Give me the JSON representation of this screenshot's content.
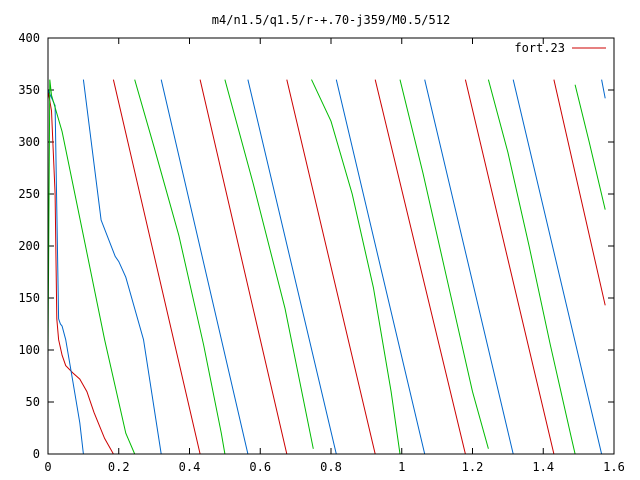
{
  "chart_data": {
    "type": "line",
    "title": "m4/n1.5/q1.5/r-+.70-j359/M0.5/512",
    "xlabel": "",
    "ylabel": "",
    "xlim": [
      0,
      1.6
    ],
    "ylim": [
      0,
      400
    ],
    "x_ticks": [
      "0",
      "0.2",
      "0.4",
      "0.6",
      "0.8",
      "1",
      "1.2",
      "1.4",
      "1.6"
    ],
    "y_ticks": [
      "0",
      "50",
      "100",
      "150",
      "200",
      "250",
      "300",
      "350",
      "400"
    ],
    "grid": false,
    "legend_position": "top-right",
    "series": [
      {
        "name": "fort.23",
        "color": "#cc0000",
        "points": [
          [
            0.0,
            350
          ],
          [
            0.01,
            330
          ],
          [
            0.02,
            250
          ],
          [
            0.025,
            130
          ],
          [
            0.03,
            110
          ],
          [
            0.04,
            95
          ],
          [
            0.05,
            85
          ],
          [
            0.07,
            78
          ],
          [
            0.09,
            72
          ],
          [
            0.11,
            60
          ],
          [
            0.13,
            40
          ],
          [
            0.16,
            15
          ],
          [
            0.185,
            0
          ],
          null,
          [
            0.185,
            360
          ],
          [
            0.43,
            0
          ],
          null,
          [
            0.43,
            360
          ],
          [
            0.675,
            0
          ],
          null,
          [
            0.675,
            360
          ],
          [
            0.925,
            0
          ],
          null,
          [
            0.925,
            360
          ],
          [
            1.18,
            0
          ],
          null,
          [
            1.18,
            360
          ],
          [
            1.43,
            0
          ],
          null,
          [
            1.43,
            360
          ],
          [
            1.575,
            143
          ]
        ]
      },
      {
        "name": "",
        "color": "#0066cc",
        "points": [
          [
            0.0,
            350
          ],
          [
            0.02,
            335
          ],
          [
            0.03,
            130
          ],
          [
            0.035,
            125
          ],
          [
            0.04,
            123
          ],
          [
            0.05,
            110
          ],
          [
            0.07,
            70
          ],
          [
            0.09,
            30
          ],
          [
            0.1,
            0
          ],
          null,
          [
            0.1,
            360
          ],
          [
            0.15,
            225
          ],
          [
            0.19,
            190
          ],
          [
            0.2,
            185
          ],
          [
            0.22,
            170
          ],
          [
            0.27,
            110
          ],
          [
            0.32,
            0
          ],
          null,
          [
            0.32,
            360
          ],
          [
            0.565,
            0
          ],
          null,
          [
            0.565,
            360
          ],
          [
            0.815,
            0
          ],
          null,
          [
            0.815,
            360
          ],
          [
            1.065,
            0
          ],
          null,
          [
            1.065,
            360
          ],
          [
            1.315,
            0
          ],
          null,
          [
            1.315,
            360
          ],
          [
            1.565,
            0
          ],
          null,
          [
            1.565,
            360
          ],
          [
            1.575,
            342
          ]
        ]
      },
      {
        "name": "",
        "color": "#00bb00",
        "points": [
          [
            0.0,
            95
          ],
          [
            0.005,
            360
          ],
          [
            0.01,
            345
          ],
          [
            0.04,
            310
          ],
          [
            0.1,
            210
          ],
          [
            0.16,
            110
          ],
          [
            0.22,
            20
          ],
          [
            0.245,
            0
          ],
          null,
          [
            0.245,
            360
          ],
          [
            0.3,
            295
          ],
          [
            0.37,
            210
          ],
          [
            0.44,
            105
          ],
          [
            0.49,
            20
          ],
          [
            0.5,
            0
          ],
          null,
          [
            0.5,
            360
          ],
          [
            0.58,
            260
          ],
          [
            0.67,
            140
          ],
          [
            0.75,
            5
          ],
          null,
          [
            0.745,
            360
          ],
          [
            0.8,
            320
          ],
          [
            0.86,
            250
          ],
          [
            0.92,
            160
          ],
          [
            0.97,
            60
          ],
          [
            0.995,
            0
          ],
          null,
          [
            0.995,
            360
          ],
          [
            1.06,
            270
          ],
          [
            1.12,
            180
          ],
          [
            1.2,
            60
          ],
          [
            1.245,
            5
          ],
          null,
          [
            1.245,
            360
          ],
          [
            1.3,
            290
          ],
          [
            1.36,
            200
          ],
          [
            1.42,
            105
          ],
          [
            1.48,
            15
          ],
          [
            1.49,
            0
          ],
          null,
          [
            1.49,
            355
          ],
          [
            1.53,
            300
          ],
          [
            1.575,
            235
          ]
        ]
      }
    ]
  }
}
